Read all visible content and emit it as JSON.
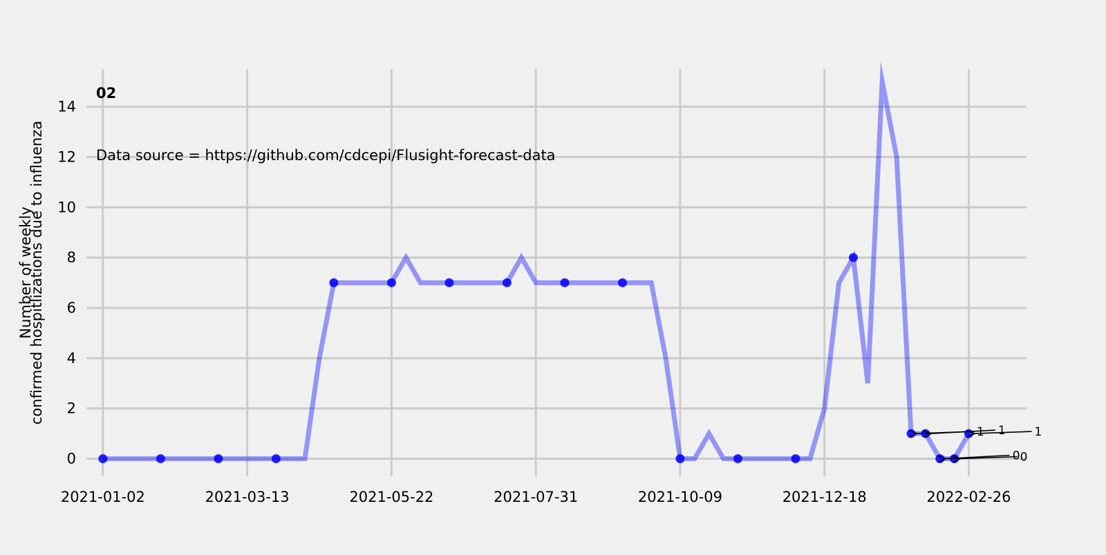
{
  "chart_data": {
    "type": "line",
    "panel_label": "02",
    "source_note": "Data source = https://github.com/cdcepi/Flusight-forecast-data",
    "ylabel_line1": "Number of weekly",
    "ylabel_line2": "confirmed hospitlizations due to influenza",
    "xlabel": "",
    "x_start": "2021-01-02",
    "xlim": [
      "2020-12-25",
      "2022-03-26"
    ],
    "ylim": [
      -0.7,
      15.5
    ],
    "x_tick_labels": [
      "2021-01-02",
      "2021-03-13",
      "2021-05-22",
      "2021-07-31",
      "2021-10-09",
      "2021-12-18",
      "2022-02-26"
    ],
    "y_ticks": [
      0,
      2,
      4,
      6,
      8,
      10,
      12,
      14
    ],
    "grid": true,
    "series": [
      {
        "color": "#0000ff",
        "x": [
          "2021-01-02",
          "2021-01-09",
          "2021-01-16",
          "2021-01-23",
          "2021-01-30",
          "2021-02-06",
          "2021-02-13",
          "2021-02-20",
          "2021-02-27",
          "2021-03-06",
          "2021-03-13",
          "2021-03-20",
          "2021-03-27",
          "2021-04-03",
          "2021-04-10",
          "2021-04-17",
          "2021-04-24",
          "2021-05-01",
          "2021-05-08",
          "2021-05-15",
          "2021-05-22",
          "2021-05-29",
          "2021-06-05",
          "2021-06-12",
          "2021-06-19",
          "2021-06-26",
          "2021-07-03",
          "2021-07-10",
          "2021-07-17",
          "2021-07-24",
          "2021-07-31",
          "2021-08-07",
          "2021-08-14",
          "2021-08-21",
          "2021-08-28",
          "2021-09-04",
          "2021-09-11",
          "2021-09-18",
          "2021-09-25",
          "2021-10-02",
          "2021-10-09",
          "2021-10-16",
          "2021-10-23",
          "2021-10-30",
          "2021-11-06",
          "2021-11-13",
          "2021-11-20",
          "2021-11-27",
          "2021-12-04",
          "2021-12-11",
          "2021-12-18",
          "2021-12-25",
          "2022-01-01",
          "2022-01-08",
          "2022-01-15",
          "2022-01-22",
          "2022-01-29",
          "2022-02-05",
          "2022-02-12",
          "2022-02-19",
          "2022-02-26"
        ],
        "values": [
          0,
          0,
          0,
          0,
          0,
          0,
          0,
          0,
          0,
          0,
          0,
          0,
          0,
          0,
          0,
          4,
          7,
          7,
          7,
          7,
          7,
          8,
          7,
          7,
          7,
          7,
          7,
          7,
          7,
          8,
          7,
          7,
          7,
          7,
          7,
          7,
          7,
          7,
          7,
          4,
          0,
          0,
          1,
          0,
          0,
          0,
          0,
          0,
          0,
          0,
          2,
          7,
          8,
          3,
          15,
          12,
          1,
          1,
          0,
          0,
          1
        ],
        "marker_x": [
          "2021-01-02",
          "2021-01-30",
          "2021-02-27",
          "2021-03-27",
          "2021-04-24",
          "2021-05-22",
          "2021-06-19",
          "2021-07-17",
          "2021-08-14",
          "2021-09-11",
          "2021-10-09",
          "2021-11-06",
          "2021-12-04",
          "2022-01-01",
          "2022-01-29",
          "2022-02-05",
          "2022-02-12",
          "2022-02-19",
          "2022-02-26"
        ],
        "marker_values": [
          0,
          0,
          0,
          0,
          7,
          7,
          7,
          7,
          7,
          7,
          0,
          0,
          0,
          8,
          1,
          1,
          0,
          0,
          1
        ]
      }
    ],
    "annotations": [
      {
        "text": "1",
        "x": "2022-01-29",
        "y": 1
      },
      {
        "text": "1",
        "x": "2022-02-05",
        "y": 1
      },
      {
        "text": "1",
        "x": "2022-02-26",
        "y": 1
      },
      {
        "text": "0",
        "x": "2022-02-12",
        "y": 0
      },
      {
        "text": "0",
        "x": "2022-02-19",
        "y": 0
      }
    ]
  }
}
